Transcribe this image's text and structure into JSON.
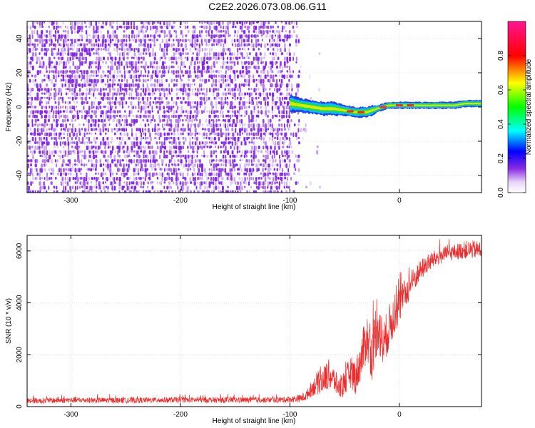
{
  "title": "C2E2.2026.073.08.06.G11",
  "chart_data": [
    {
      "type": "heatmap",
      "xlabel": "Height of straight line (km)",
      "ylabel": "Frequency (Hz)",
      "xlim": [
        -340,
        75
      ],
      "ylim": [
        -50,
        50
      ],
      "x_ticks": [
        -300,
        -200,
        -100,
        0
      ],
      "x_tick_labels": [
        "-300",
        "-200",
        "-100",
        "0"
      ],
      "y_ticks": [
        -40,
        -20,
        0,
        20,
        40
      ],
      "y_tick_labels": [
        "-40",
        "-20",
        "0",
        "20",
        "40"
      ],
      "noise_extent_km": -85,
      "signal_band": {
        "x": [
          -100,
          -90,
          -80,
          -70,
          -60,
          -50,
          -40,
          -30,
          -25,
          -20,
          -15,
          -10,
          0,
          10,
          20,
          30,
          40,
          50,
          60,
          75
        ],
        "center_hz": [
          2,
          1,
          0,
          -1,
          -1,
          -2,
          -3,
          -3,
          -2,
          -1,
          0,
          1,
          1,
          1,
          1,
          1,
          1,
          1,
          2,
          2
        ],
        "half_width_hz": [
          5,
          4,
          4,
          4,
          4,
          3,
          3,
          3,
          3,
          2,
          2,
          2,
          2,
          2,
          2,
          2,
          2,
          2,
          2,
          2
        ]
      },
      "colorbar": {
        "label": "Normalized spectral amplitude",
        "range": [
          0,
          1
        ],
        "ticks": [
          0.0,
          0.2,
          0.4,
          0.6,
          0.8
        ],
        "tick_labels": [
          "0.0",
          "0.2",
          "0.4",
          "0.6",
          "0.8"
        ]
      }
    },
    {
      "type": "line",
      "xlabel": "Height of straight line (km)",
      "ylabel": "SNR (10 * v/v)",
      "xlim": [
        -340,
        75
      ],
      "ylim": [
        0,
        6600
      ],
      "x_ticks": [
        -300,
        -200,
        -100,
        0
      ],
      "x_tick_labels": [
        "-300",
        "-200",
        "-100",
        "0"
      ],
      "y_ticks": [
        0,
        2000,
        4000,
        6000
      ],
      "y_tick_labels": [
        "0",
        "2000",
        "4000",
        "6000"
      ],
      "series": [
        {
          "name": "SNR",
          "color": "#ee2a2a",
          "x": [
            -340,
            -300,
            -250,
            -200,
            -150,
            -120,
            -100,
            -90,
            -85,
            -80,
            -75,
            -70,
            -65,
            -60,
            -55,
            -50,
            -45,
            -40,
            -35,
            -30,
            -25,
            -20,
            -15,
            -10,
            -5,
            0,
            10,
            20,
            30,
            40,
            50,
            60,
            75
          ],
          "y": [
            220,
            250,
            240,
            260,
            250,
            255,
            270,
            320,
            420,
            700,
            900,
            1000,
            1250,
            1050,
            700,
            900,
            1350,
            1150,
            1800,
            2700,
            1900,
            3400,
            2300,
            3000,
            3500,
            3900,
            4700,
            5300,
            5650,
            5850,
            5950,
            6050,
            6050
          ],
          "amp": [
            110,
            110,
            110,
            110,
            110,
            110,
            120,
            150,
            200,
            300,
            450,
            500,
            600,
            500,
            400,
            550,
            600,
            700,
            800,
            1000,
            900,
            1300,
            900,
            900,
            800,
            700,
            500,
            400,
            350,
            300,
            300,
            350,
            350
          ]
        }
      ]
    }
  ]
}
